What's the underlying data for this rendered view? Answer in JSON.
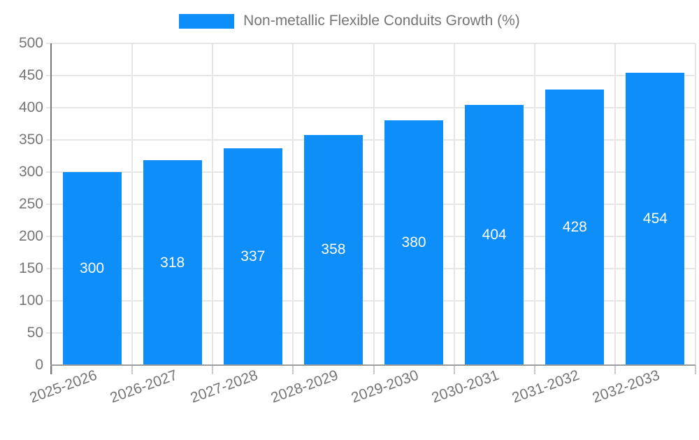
{
  "legend": {
    "label": "Non-metallic Flexible Conduits Growth (%)"
  },
  "chart_data": {
    "type": "bar",
    "title": "",
    "xlabel": "",
    "ylabel": "",
    "categories": [
      "2025-2026",
      "2026-2027",
      "2027-2028",
      "2028-2029",
      "2029-2030",
      "2030-2031",
      "2031-2032",
      "2032-2033"
    ],
    "values": [
      300,
      318,
      337,
      358,
      380,
      404,
      428,
      454
    ],
    "series_name": "Non-metallic Flexible Conduits Growth (%)",
    "value_labels": [
      "300",
      "318",
      "337",
      "358",
      "380",
      "404",
      "428",
      "454"
    ],
    "ylim": [
      0,
      500
    ],
    "yticks": [
      0,
      50,
      100,
      150,
      200,
      250,
      300,
      350,
      400,
      450,
      500
    ],
    "grid": "on",
    "legend_position": "top-center",
    "x_label_rotation_deg": -20,
    "colors": {
      "bar": "#0d8ef8",
      "value_label_text": "#ffffff",
      "axis_text": "#757575",
      "gridline": "#e6e6e6",
      "tick": "#c9c9c9",
      "y_axis_line": "#787878",
      "x_axis_line": "#9e9e9e",
      "background": "#ffffff"
    }
  }
}
